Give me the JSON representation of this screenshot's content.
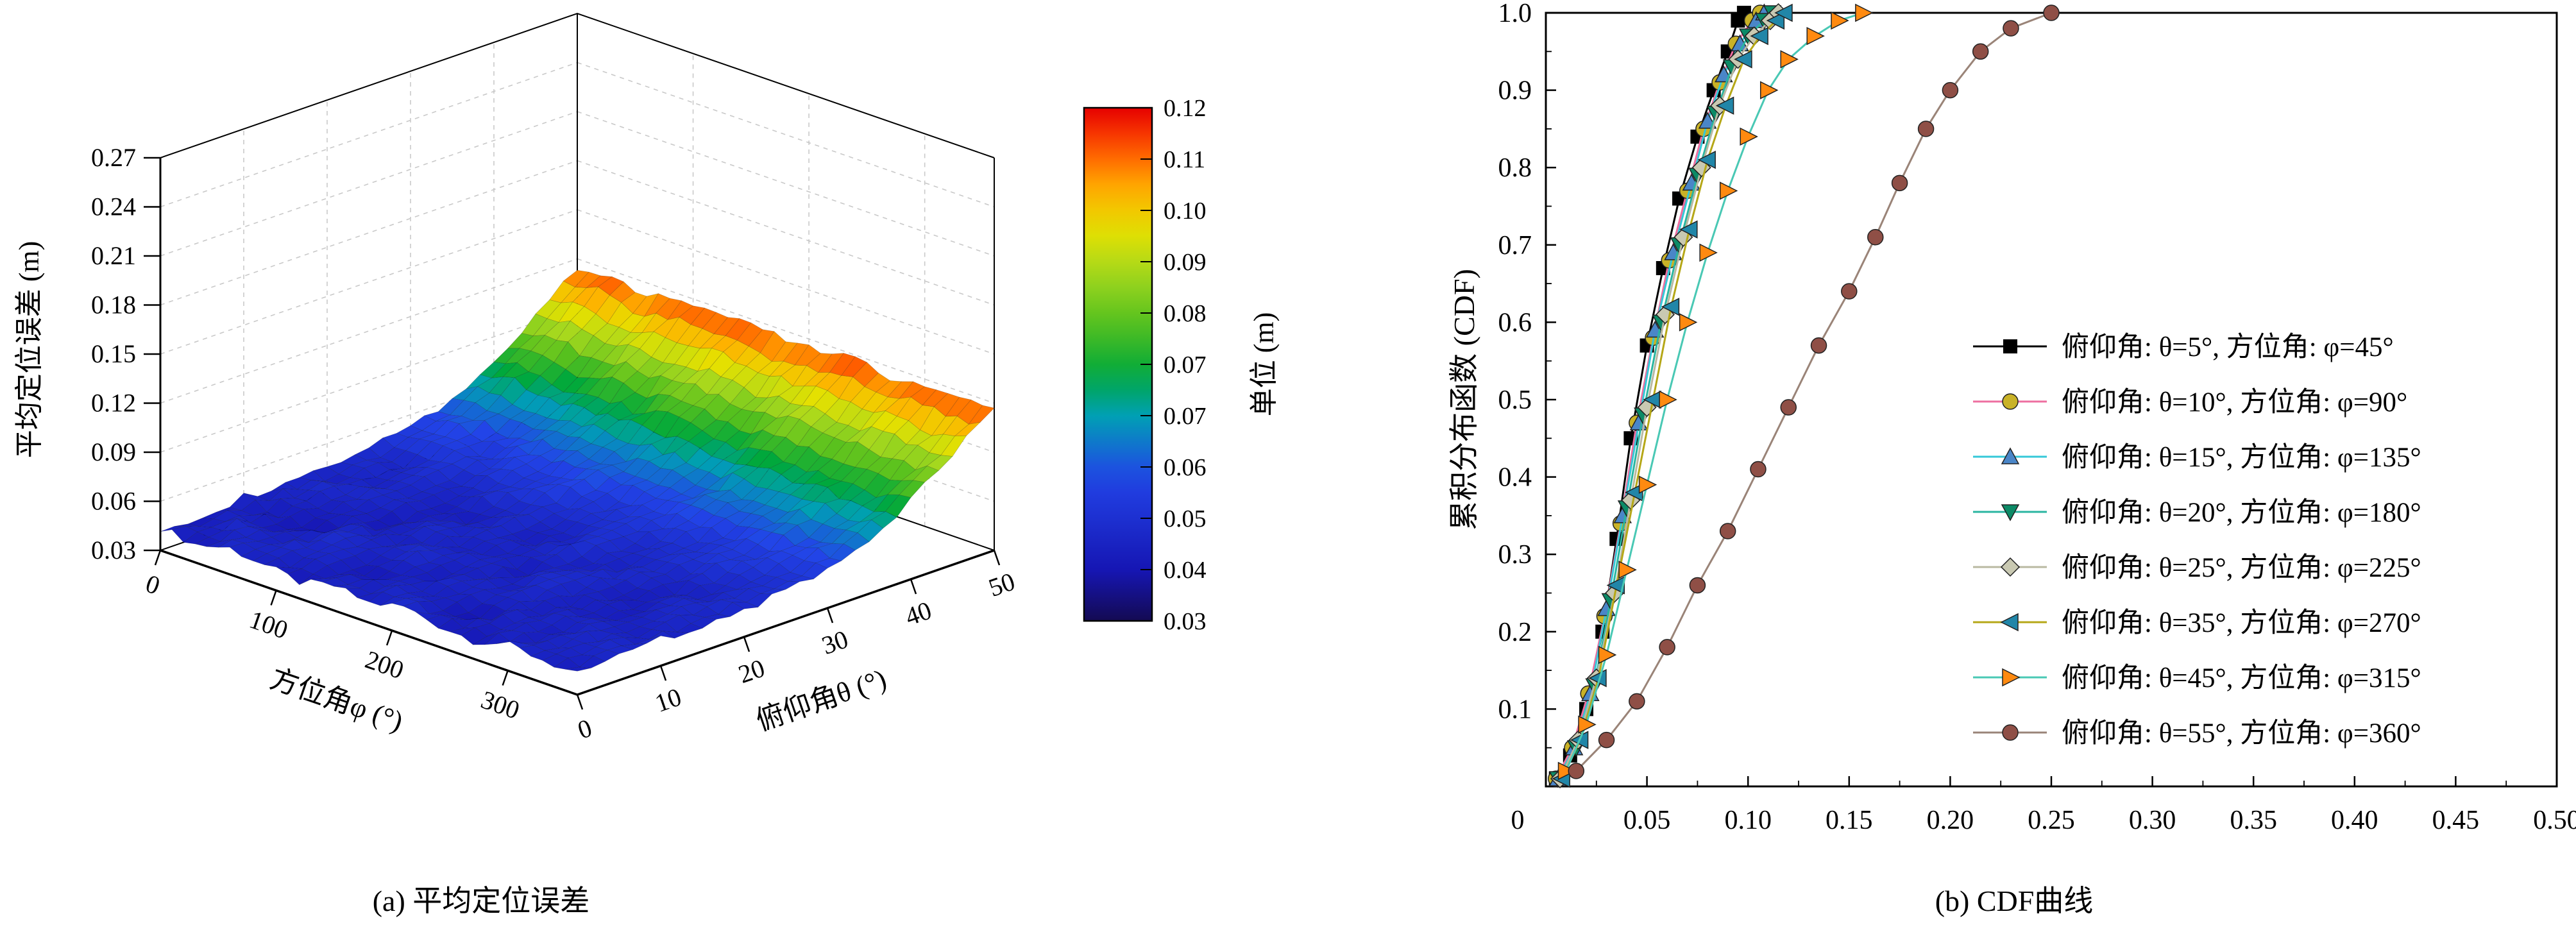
{
  "captions": {
    "a": "(a) 平均定位误差",
    "b": "(b) CDF曲线"
  },
  "chart_data": [
    {
      "id": "mean-positioning-error-surface",
      "type": "heatmap",
      "projection": "3d-surface",
      "title": "",
      "xlabel": "方位角φ (°)",
      "ylabel": "俯仰角θ (°)",
      "zlabel": "平均定位误差 (m)",
      "colorbar_label": "单位 (m)",
      "x_ticks": [
        0,
        100,
        200,
        300
      ],
      "y_ticks": [
        0,
        10,
        20,
        30,
        40,
        50
      ],
      "z_ticks": [
        0.03,
        0.06,
        0.09,
        0.12,
        0.15,
        0.18,
        0.21,
        0.24,
        0.27
      ],
      "colorbar_tick_labels": [
        "0.12",
        "0.11",
        "0.10",
        "0.09",
        "0.08",
        "0.07",
        "0.07",
        "0.06",
        "0.05",
        "0.04",
        "0.03"
      ],
      "colorbar_range": [
        0.03,
        0.12
      ],
      "azimuth_deg": [
        0,
        30,
        60,
        90,
        120,
        150,
        180,
        210,
        240,
        270,
        300,
        330,
        360
      ],
      "elevation_deg": [
        0,
        5,
        10,
        15,
        20,
        25,
        30,
        35,
        40,
        45,
        50
      ],
      "error_grid_m": [
        [
          0.044,
          0.041,
          0.046,
          0.043,
          0.04,
          0.045,
          0.042,
          0.047,
          0.043,
          0.041,
          0.046,
          0.044,
          0.042
        ],
        [
          0.042,
          0.046,
          0.043,
          0.047,
          0.044,
          0.041,
          0.046,
          0.043,
          0.04,
          0.045,
          0.042,
          0.047,
          0.044
        ],
        [
          0.045,
          0.042,
          0.04,
          0.046,
          0.043,
          0.047,
          0.041,
          0.044,
          0.046,
          0.042,
          0.045,
          0.043,
          0.046
        ],
        [
          0.043,
          0.047,
          0.044,
          0.041,
          0.046,
          0.043,
          0.045,
          0.042,
          0.047,
          0.044,
          0.041,
          0.046,
          0.043
        ],
        [
          0.046,
          0.043,
          0.047,
          0.044,
          0.042,
          0.046,
          0.043,
          0.048,
          0.044,
          0.046,
          0.043,
          0.045,
          0.047
        ],
        [
          0.048,
          0.045,
          0.049,
          0.046,
          0.05,
          0.047,
          0.045,
          0.049,
          0.046,
          0.048,
          0.05,
          0.047,
          0.049
        ],
        [
          0.052,
          0.055,
          0.051,
          0.054,
          0.052,
          0.056,
          0.053,
          0.051,
          0.055,
          0.052,
          0.054,
          0.053,
          0.055
        ],
        [
          0.06,
          0.063,
          0.059,
          0.062,
          0.065,
          0.061,
          0.064,
          0.06,
          0.063,
          0.061,
          0.065,
          0.062,
          0.064
        ],
        [
          0.075,
          0.078,
          0.073,
          0.077,
          0.074,
          0.079,
          0.076,
          0.073,
          0.078,
          0.075,
          0.077,
          0.074,
          0.078
        ],
        [
          0.093,
          0.097,
          0.091,
          0.096,
          0.094,
          0.098,
          0.092,
          0.095,
          0.097,
          0.093,
          0.096,
          0.094,
          0.097
        ],
        [
          0.114,
          0.118,
          0.112,
          0.117,
          0.115,
          0.119,
          0.113,
          0.116,
          0.118,
          0.114,
          0.117,
          0.115,
          0.118
        ]
      ]
    },
    {
      "id": "cdf-curves",
      "type": "line",
      "title": "",
      "xlabel": "",
      "ylabel": "累积分布函数 (CDF)",
      "origin_label": "0",
      "xlim": [
        0,
        0.5
      ],
      "ylim": [
        0,
        1.0
      ],
      "x_ticks": [
        0.05,
        0.1,
        0.15,
        0.2,
        0.25,
        0.3,
        0.35,
        0.4,
        0.45,
        0.5
      ],
      "y_ticks": [
        0.1,
        0.2,
        0.3,
        0.4,
        0.5,
        0.6,
        0.7,
        0.8,
        0.9,
        1.0
      ],
      "legend_position": "inside-right",
      "series": [
        {
          "label": "俯仰角: θ=5°, 方位角: φ=45°",
          "line_color": "#000000",
          "marker": "square",
          "marker_color": "#000000",
          "x": [
            0.005,
            0.012,
            0.02,
            0.028,
            0.035,
            0.042,
            0.05,
            0.058,
            0.066,
            0.075,
            0.083,
            0.09,
            0.095,
            0.098
          ],
          "y": [
            0.01,
            0.04,
            0.1,
            0.2,
            0.32,
            0.45,
            0.57,
            0.67,
            0.76,
            0.84,
            0.9,
            0.95,
            0.99,
            1.0
          ]
        },
        {
          "label": "俯仰角: θ=10°, 方位角: φ=90°",
          "line_color": "#ee6fa0",
          "marker": "circle",
          "marker_color": "#c9b227",
          "x": [
            0.005,
            0.013,
            0.021,
            0.029,
            0.037,
            0.045,
            0.053,
            0.061,
            0.07,
            0.078,
            0.086,
            0.094,
            0.102,
            0.106
          ],
          "y": [
            0.01,
            0.05,
            0.12,
            0.22,
            0.34,
            0.47,
            0.58,
            0.68,
            0.77,
            0.85,
            0.91,
            0.96,
            0.99,
            1.0
          ]
        },
        {
          "label": "俯仰角: θ=15°, 方位角: φ=135°",
          "line_color": "#35c8d8",
          "marker": "triangle-up",
          "marker_color": "#4a86c8",
          "x": [
            0.006,
            0.014,
            0.022,
            0.03,
            0.038,
            0.046,
            0.054,
            0.063,
            0.072,
            0.08,
            0.088,
            0.096,
            0.104,
            0.108
          ],
          "y": [
            0.01,
            0.05,
            0.12,
            0.23,
            0.35,
            0.47,
            0.59,
            0.69,
            0.78,
            0.86,
            0.92,
            0.96,
            0.99,
            1.0
          ]
        },
        {
          "label": "俯仰角: θ=20°, 方位角: φ=180°",
          "line_color": "#2ab5a0",
          "marker": "triangle-down",
          "marker_color": "#0c8a66",
          "x": [
            0.006,
            0.015,
            0.024,
            0.032,
            0.04,
            0.048,
            0.057,
            0.066,
            0.075,
            0.084,
            0.092,
            0.1,
            0.108,
            0.112
          ],
          "y": [
            0.01,
            0.05,
            0.13,
            0.24,
            0.36,
            0.48,
            0.6,
            0.7,
            0.79,
            0.87,
            0.93,
            0.97,
            0.99,
            1.0
          ]
        },
        {
          "label": "俯仰角: θ=25°, 方位角: φ=225°",
          "line_color": "#b9b9a2",
          "marker": "diamond",
          "marker_color": "#c9c9b2",
          "x": [
            0.007,
            0.016,
            0.025,
            0.034,
            0.042,
            0.05,
            0.059,
            0.068,
            0.077,
            0.086,
            0.095,
            0.103,
            0.111,
            0.115
          ],
          "y": [
            0.01,
            0.06,
            0.14,
            0.25,
            0.37,
            0.49,
            0.61,
            0.71,
            0.8,
            0.88,
            0.94,
            0.97,
            0.99,
            1.0
          ]
        },
        {
          "label": "俯仰角: θ=35°, 方位角: φ=270°",
          "line_color": "#b5a717",
          "marker": "triangle-left",
          "marker_color": "#2186a8",
          "x": [
            0.008,
            0.017,
            0.026,
            0.035,
            0.044,
            0.053,
            0.062,
            0.071,
            0.08,
            0.089,
            0.098,
            0.106,
            0.114,
            0.118
          ],
          "y": [
            0.01,
            0.06,
            0.14,
            0.26,
            0.38,
            0.5,
            0.62,
            0.72,
            0.81,
            0.88,
            0.94,
            0.97,
            0.99,
            1.0
          ]
        },
        {
          "label": "俯仰角: θ=45°, 方位角: φ=315°",
          "line_color": "#49c8b4",
          "marker": "triangle-right",
          "marker_color": "#ff8a10",
          "x": [
            0.01,
            0.02,
            0.03,
            0.04,
            0.05,
            0.06,
            0.07,
            0.08,
            0.09,
            0.1,
            0.11,
            0.12,
            0.133,
            0.145,
            0.157
          ],
          "y": [
            0.02,
            0.08,
            0.17,
            0.28,
            0.39,
            0.5,
            0.6,
            0.69,
            0.77,
            0.84,
            0.9,
            0.94,
            0.97,
            0.99,
            1.0
          ]
        },
        {
          "label": "俯仰角: θ=55°, 方位角: φ=360°",
          "line_color": "#9a8478",
          "marker": "circle",
          "marker_color": "#8f4f46",
          "x": [
            0.015,
            0.03,
            0.045,
            0.06,
            0.075,
            0.09,
            0.105,
            0.12,
            0.135,
            0.15,
            0.163,
            0.175,
            0.188,
            0.2,
            0.215,
            0.23,
            0.25
          ],
          "y": [
            0.02,
            0.06,
            0.11,
            0.18,
            0.26,
            0.33,
            0.41,
            0.49,
            0.57,
            0.64,
            0.71,
            0.78,
            0.85,
            0.9,
            0.95,
            0.98,
            1.0
          ]
        }
      ]
    }
  ]
}
